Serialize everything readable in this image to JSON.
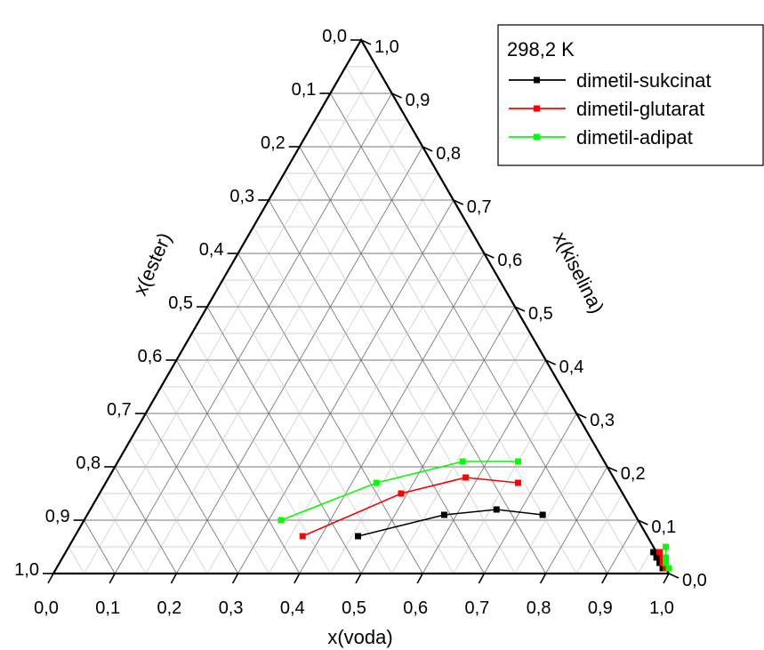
{
  "chart_data": {
    "type": "ternary-line",
    "axes": {
      "bottom": {
        "label": "x(voda)",
        "ticks": [
          "0,0",
          "0,1",
          "0,2",
          "0,3",
          "0,4",
          "0,5",
          "0,6",
          "0,7",
          "0,8",
          "0,9",
          "1,0"
        ]
      },
      "left": {
        "label": "x(ester)",
        "ticks": [
          "0,0",
          "0,1",
          "0,2",
          "0,3",
          "0,4",
          "0,5",
          "0,6",
          "0,7",
          "0,8",
          "0,9",
          "1,0"
        ]
      },
      "right": {
        "label": "x(kiselina)",
        "ticks": [
          "0,0",
          "0,1",
          "0,2",
          "0,3",
          "0,4",
          "0,5",
          "0,6",
          "0,7",
          "0,8",
          "0,9",
          "1,0"
        ]
      },
      "range": [
        0,
        1
      ],
      "grid": true,
      "grid_step": 0.05
    },
    "legend": {
      "title": "298,2 K",
      "position": "top-right"
    },
    "series": [
      {
        "name": "dimetil-sukcinat",
        "color": "#000000",
        "organic": [
          {
            "voda": 0.46,
            "kiselina": 0.07
          },
          {
            "voda": 0.58,
            "kiselina": 0.11
          },
          {
            "voda": 0.66,
            "kiselina": 0.12
          },
          {
            "voda": 0.74,
            "kiselina": 0.11
          }
        ],
        "aqueous": [
          {
            "voda": 0.955,
            "kiselina": 0.04
          },
          {
            "voda": 0.965,
            "kiselina": 0.03
          },
          {
            "voda": 0.975,
            "kiselina": 0.02
          },
          {
            "voda": 0.985,
            "kiselina": 0.01
          }
        ]
      },
      {
        "name": "dimetil-glutarat",
        "color": "#ff0000",
        "organic": [
          {
            "voda": 0.37,
            "kiselina": 0.07
          },
          {
            "voda": 0.49,
            "kiselina": 0.15
          },
          {
            "voda": 0.58,
            "kiselina": 0.18
          },
          {
            "voda": 0.67,
            "kiselina": 0.17
          }
        ],
        "aqueous": [
          {
            "voda": 0.965,
            "kiselina": 0.04
          },
          {
            "voda": 0.975,
            "kiselina": 0.03
          },
          {
            "voda": 0.98,
            "kiselina": 0.02
          },
          {
            "voda": 0.99,
            "kiselina": 0.01
          }
        ]
      },
      {
        "name": "dimetil-adipat",
        "color": "#00ff00",
        "organic": [
          {
            "voda": 0.32,
            "kiselina": 0.1
          },
          {
            "voda": 0.44,
            "kiselina": 0.17
          },
          {
            "voda": 0.56,
            "kiselina": 0.21
          },
          {
            "voda": 0.65,
            "kiselina": 0.21
          }
        ],
        "aqueous": [
          {
            "voda": 0.97,
            "kiselina": 0.05
          },
          {
            "voda": 0.98,
            "kiselina": 0.03
          },
          {
            "voda": 0.985,
            "kiselina": 0.02
          },
          {
            "voda": 0.995,
            "kiselina": 0.01
          }
        ]
      }
    ]
  }
}
